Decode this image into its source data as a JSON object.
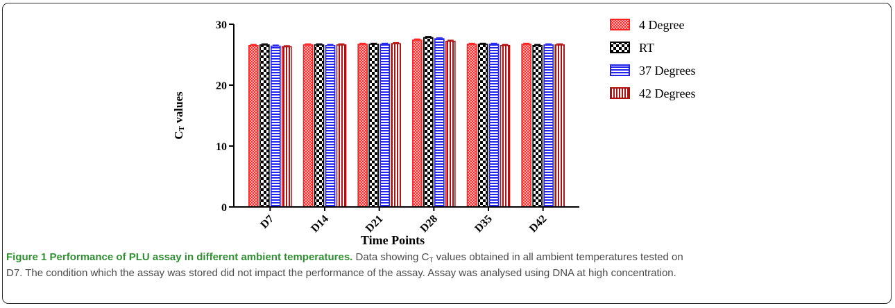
{
  "figure": {
    "label": "Figure 1",
    "title": "Performance of PLU assay in different ambient temperatures.",
    "caption_lines": [
      {
        "before": "Data showing C",
        "sub": "T",
        "after": " values obtained in all ambient temperatures tested on"
      },
      {
        "before": "D7. The condition which the assay was stored did not impact the performance of the assay. Assay was analysed using DNA at high concentration.",
        "sub": "",
        "after": ""
      }
    ]
  },
  "chart_data": {
    "type": "bar",
    "xlabel": "Time Points",
    "ylabel_main": "C",
    "ylabel_sub": "T",
    "ylabel_rest": " values",
    "ylim": [
      0,
      30
    ],
    "yticks": [
      0,
      10,
      20,
      30
    ],
    "categories": [
      "D7",
      "D14",
      "D21",
      "D28",
      "D35",
      "D42"
    ],
    "legend_position": "right",
    "series": [
      {
        "name": "4 Degree",
        "color": "#ff2020",
        "pattern": "dots",
        "values": [
          26.5,
          26.6,
          26.7,
          27.4,
          26.7,
          26.7
        ]
      },
      {
        "name": "RT",
        "color": "#000000",
        "pattern": "checker",
        "values": [
          26.6,
          26.6,
          26.7,
          27.8,
          26.7,
          26.5
        ]
      },
      {
        "name": "37 Degrees",
        "color": "#2222ee",
        "pattern": "hlines",
        "values": [
          26.4,
          26.5,
          26.7,
          27.6,
          26.7,
          26.6
        ]
      },
      {
        "name": "42 Degrees",
        "color": "#b01010",
        "pattern": "vlines",
        "values": [
          26.3,
          26.6,
          26.8,
          27.2,
          26.5,
          26.6
        ]
      }
    ]
  }
}
